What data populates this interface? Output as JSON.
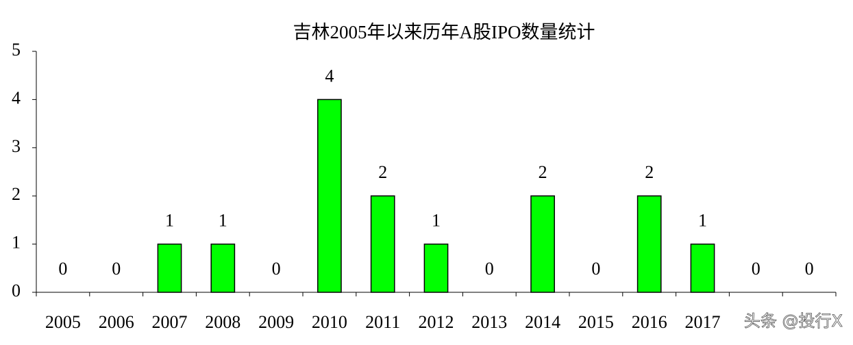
{
  "chart_data": {
    "type": "bar",
    "title": "吉林2005年以来历年A股IPO数量统计",
    "categories": [
      "2005",
      "2006",
      "2007",
      "2008",
      "2009",
      "2010",
      "2011",
      "2012",
      "2013",
      "2014",
      "2015",
      "2016",
      "2017",
      null,
      null
    ],
    "values": [
      0,
      0,
      1,
      1,
      0,
      4,
      2,
      1,
      0,
      2,
      0,
      2,
      1,
      0,
      0
    ],
    "color": "#00ff00",
    "ylim": [
      0,
      5
    ],
    "yticks": [
      0,
      1,
      2,
      3,
      4,
      5
    ],
    "grid": false,
    "watermark": "头条 @投行X"
  }
}
